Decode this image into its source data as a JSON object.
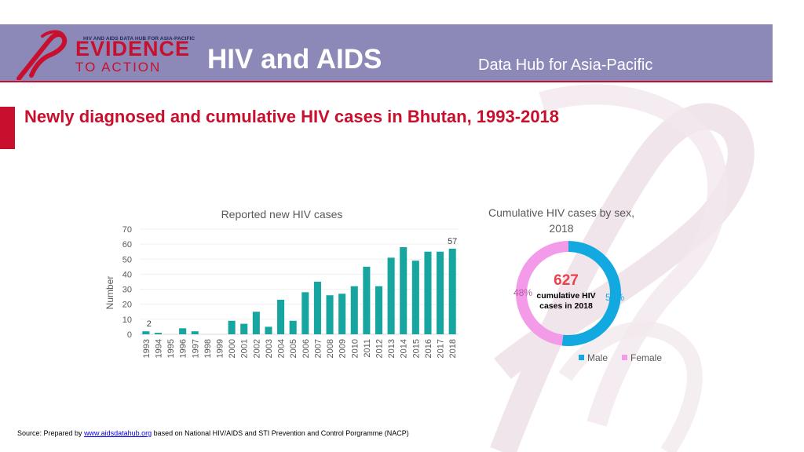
{
  "header": {
    "logo_small": "HIV AND AIDS DATA HUB FOR ASIA-PACIFIC",
    "logo_big": "EVIDENCE",
    "logo_sub": "TO ACTION",
    "title": "HIV and AIDS",
    "subtitle": "Data Hub for Asia-Pacific"
  },
  "page_title": "Newly diagnosed and cumulative HIV cases in Bhutan, 1993-2018",
  "footer": {
    "prefix": "Source: Prepared by ",
    "link": "www.aidsdatahub.org",
    "suffix": " based on National HIV/AIDS and STI Prevention and Control Porgramme (NACP)"
  },
  "colors": {
    "brand_red": "#c8102e",
    "header_bg": "#8c89b8",
    "bar": "#17a5a0",
    "male": "#12a9e1",
    "female": "#f39be9"
  },
  "chart_data": [
    {
      "type": "bar",
      "title": "Reported new HIV cases",
      "ylabel": "Number",
      "xlabel": "",
      "ylim": [
        0,
        70
      ],
      "yticks": [
        0,
        10,
        20,
        30,
        40,
        50,
        60,
        70
      ],
      "grid": true,
      "categories": [
        "1993",
        "1994",
        "1995",
        "1996",
        "1997",
        "1998",
        "1999",
        "2000",
        "2001",
        "2002",
        "2003",
        "2004",
        "2005",
        "2006",
        "2007",
        "2008",
        "2009",
        "2010",
        "2011",
        "2012",
        "2013",
        "2014",
        "2015",
        "2016",
        "2017",
        "2018"
      ],
      "values": [
        2,
        1,
        0,
        4,
        2,
        0,
        0,
        9,
        7,
        15,
        5,
        23,
        9,
        28,
        35,
        26,
        27,
        32,
        45,
        32,
        51,
        58,
        49,
        55,
        55,
        57
      ],
      "data_labels": {
        "1993": "2",
        "2018": "57"
      }
    },
    {
      "type": "pie",
      "title_line1": "Cumulative HIV cases by sex,",
      "title_line2": "2018",
      "center_value": "627",
      "center_label_line1": "cumulative HIV",
      "center_label_line2": "cases in 2018",
      "slices": [
        {
          "name": "Male",
          "value": 52,
          "label": "52%"
        },
        {
          "name": "Female",
          "value": 48,
          "label": "48%"
        }
      ],
      "legend_position": "bottom-right"
    }
  ]
}
